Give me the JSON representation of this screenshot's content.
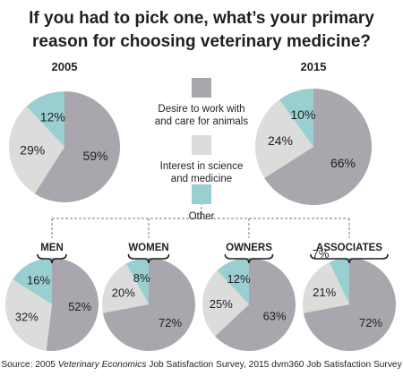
{
  "title_lines": [
    "If you had to pick one, what’s your primary",
    "reason for choosing veterinary medicine?"
  ],
  "colors": {
    "desire": "#a9a6ad",
    "science": "#dcdcdb",
    "other": "#9acfd2",
    "connector": "#777777"
  },
  "legend": [
    {
      "key": "desire",
      "lines": [
        "Desire to work with",
        "and care for animals"
      ]
    },
    {
      "key": "science",
      "lines": [
        "Interest in science",
        "and medicine"
      ]
    },
    {
      "key": "other",
      "lines": [
        "Other"
      ]
    }
  ],
  "chart_data": [
    {
      "type": "pie",
      "title": "2005",
      "slices": [
        {
          "category": "desire",
          "value": 59,
          "label": "59%"
        },
        {
          "category": "science",
          "value": 29,
          "label": "29%"
        },
        {
          "category": "other",
          "value": 12,
          "label": "12%"
        }
      ]
    },
    {
      "type": "pie",
      "title": "2015",
      "slices": [
        {
          "category": "desire",
          "value": 66,
          "label": "66%"
        },
        {
          "category": "science",
          "value": 24,
          "label": "24%"
        },
        {
          "category": "other",
          "value": 10,
          "label": "10%"
        }
      ]
    },
    {
      "type": "pie",
      "title": "MEN",
      "slices": [
        {
          "category": "desire",
          "value": 52,
          "label": "52%"
        },
        {
          "category": "science",
          "value": 32,
          "label": "32%"
        },
        {
          "category": "other",
          "value": 16,
          "label": "16%"
        }
      ]
    },
    {
      "type": "pie",
      "title": "WOMEN",
      "slices": [
        {
          "category": "desire",
          "value": 72,
          "label": "72%"
        },
        {
          "category": "science",
          "value": 20,
          "label": "20%"
        },
        {
          "category": "other",
          "value": 8,
          "label": "8%"
        }
      ]
    },
    {
      "type": "pie",
      "title": "OWNERS",
      "slices": [
        {
          "category": "desire",
          "value": 63,
          "label": "63%"
        },
        {
          "category": "science",
          "value": 25,
          "label": "25%"
        },
        {
          "category": "other",
          "value": 12,
          "label": "12%"
        }
      ]
    },
    {
      "type": "pie",
      "title": "ASSOCIATES",
      "slices": [
        {
          "category": "desire",
          "value": 72,
          "label": "72%"
        },
        {
          "category": "science",
          "value": 21,
          "label": "21%"
        },
        {
          "category": "other",
          "value": 7,
          "label": "7%"
        }
      ]
    }
  ],
  "source": {
    "prefix": "Source: 2005 ",
    "italic": "Veterinary Economics",
    "suffix": " Job Satisfaction Survey, 2015 dvm360 Job Satisfaction Survey"
  }
}
